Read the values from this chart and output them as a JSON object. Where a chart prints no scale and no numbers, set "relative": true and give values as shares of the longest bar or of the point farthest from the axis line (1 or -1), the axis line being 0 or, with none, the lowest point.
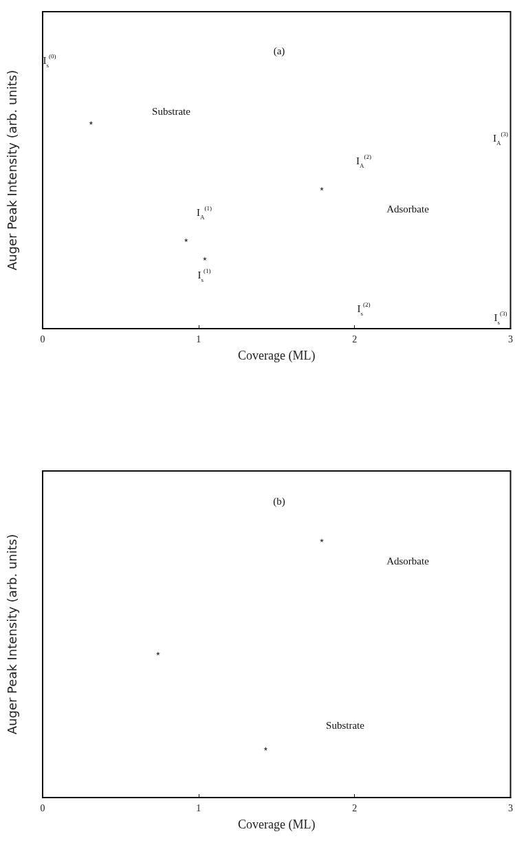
{
  "chart_data": [
    {
      "type": "scatter",
      "relative": true,
      "xlabel": "Coverage (ML)",
      "ylabel": "Auger Peak Intensity (arb. units)",
      "xlim": [
        0,
        3
      ],
      "xticks": [
        0,
        1,
        2,
        3
      ],
      "tick_labels": "x",
      "grid": false,
      "marker": "star",
      "series": [
        {
          "color": "#111111",
          "x": [
            0.31,
            0.92,
            1.04,
            1.79
          ],
          "values": [
            1,
            0.43,
            0.34,
            0.68
          ]
        }
      ],
      "annotations": [
        "(a)",
        "Substrate",
        "Adsorbate",
        "I$_{s}$$^{(0)}$",
        "I$_{A}$$^{(1)}$",
        "I$_{s}$$^{(1)}$",
        "I$_{A}$$^{(2)}$",
        "I$_{s}$$^{(2)}$",
        "I$_{A}$$^{(3)}$",
        "I$_{s}$$^{(3)}$"
      ]
    },
    {
      "type": "scatter",
      "relative": true,
      "xlabel": "Coverage (ML)",
      "ylabel": "Auger Peak Intensity (arb. units)",
      "xlim": [
        0,
        3
      ],
      "xticks": [
        0,
        1,
        2,
        3
      ],
      "tick_labels": "x",
      "grid": false,
      "marker": "star",
      "series": [
        {
          "color": "#111111",
          "x": [
            0.74,
            1.43,
            1.79
          ],
          "values": [
            0.56,
            0.19,
            1
          ]
        }
      ],
      "annotations": [
        "(b)",
        "Adsorbate",
        "Substrate"
      ]
    }
  ]
}
